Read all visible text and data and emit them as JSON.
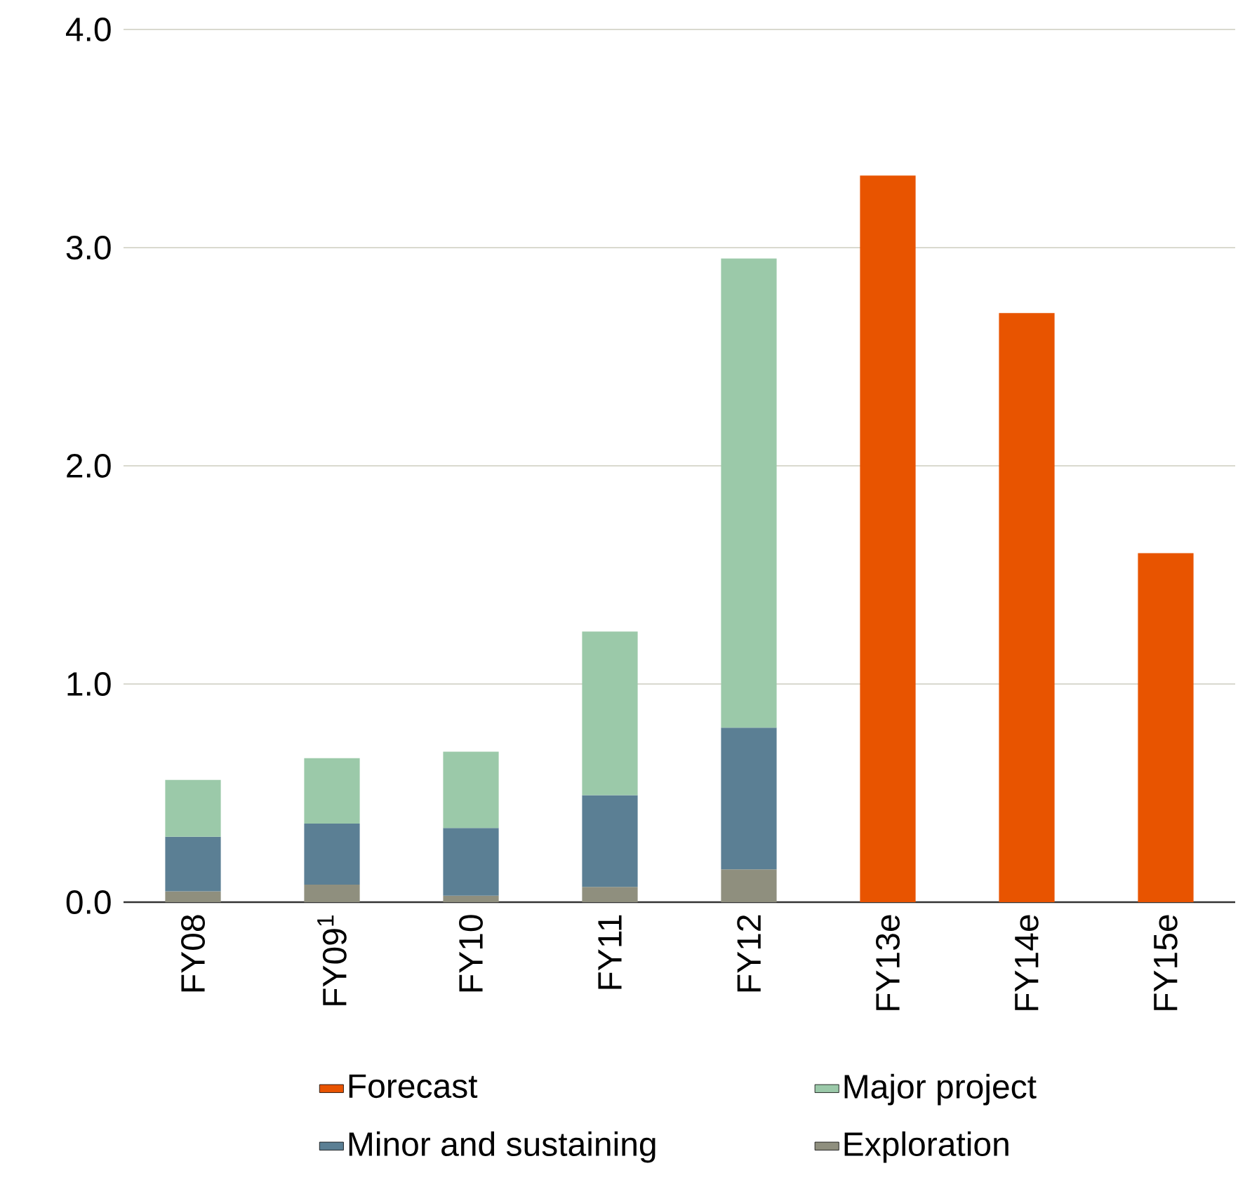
{
  "chart_data": {
    "type": "bar",
    "stacked": true,
    "categories": [
      "FY08",
      "FY09$^{1}$",
      "FY10",
      "FY11",
      "FY12",
      "FY13e",
      "FY14e",
      "FY15e"
    ],
    "series": [
      {
        "name": "Exploration",
        "color": "#8f8f7e",
        "values": [
          0.05,
          0.08,
          0.03,
          0.07,
          0.15,
          null,
          null,
          null
        ]
      },
      {
        "name": "Minor and sustaining",
        "color": "#5b7f94",
        "values": [
          0.25,
          0.28,
          0.31,
          0.42,
          0.65,
          null,
          null,
          null
        ]
      },
      {
        "name": "Major project",
        "color": "#9bc9a9",
        "values": [
          0.26,
          0.3,
          0.35,
          0.75,
          2.15,
          null,
          null,
          null
        ]
      },
      {
        "name": "Forecast",
        "color": "#e85400",
        "values": [
          null,
          null,
          null,
          null,
          null,
          3.33,
          2.7,
          1.6
        ]
      }
    ],
    "ylim": [
      0,
      4
    ],
    "yticks": [
      {
        "value": 0,
        "label": "0.0"
      },
      {
        "value": 1,
        "label": "1.0"
      },
      {
        "value": 2,
        "label": "2.0"
      },
      {
        "value": 3,
        "label": "3.0"
      },
      {
        "value": 4,
        "label": "4.0"
      }
    ],
    "grid": "y",
    "legend": "bottom"
  }
}
